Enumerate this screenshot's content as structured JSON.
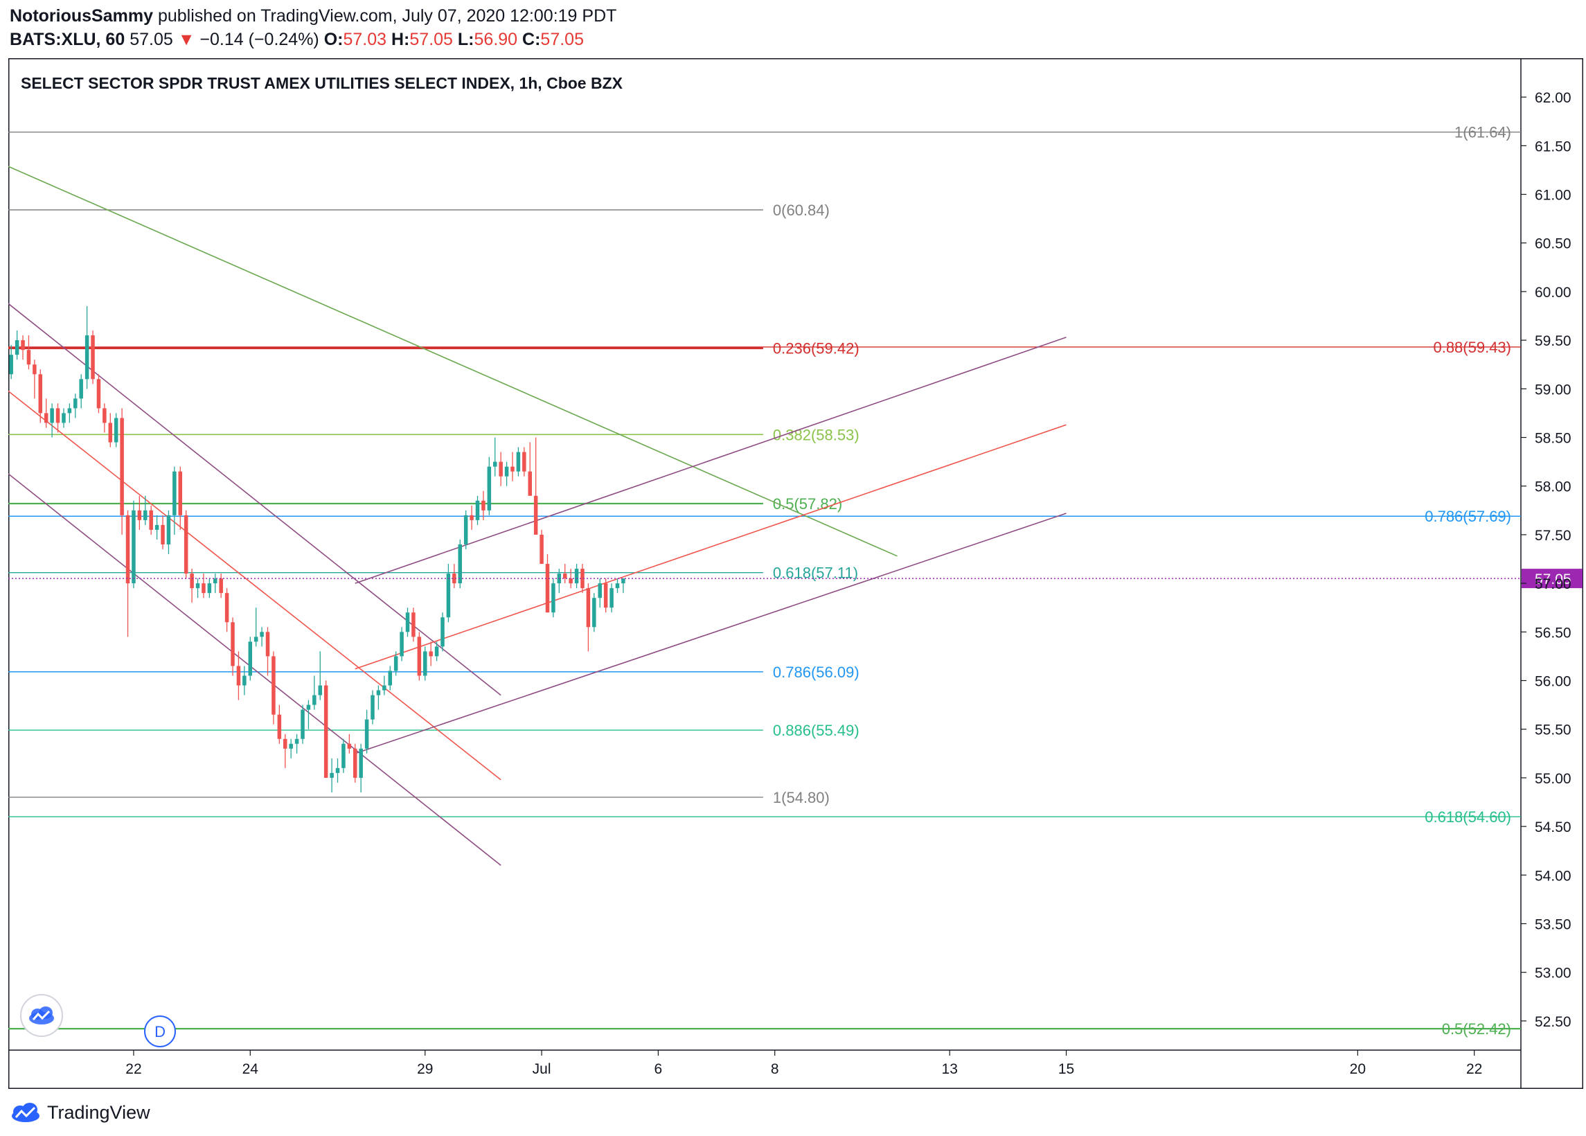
{
  "header": {
    "author": "NotoriousSammy",
    "published": "published on TradingView.com, July 07, 2020 12:00:19 PDT",
    "symbol": "BATS:XLU, 60",
    "last": "57.05",
    "arrow": "▼",
    "change": "−0.14 (−0.24%)",
    "o_label": "O:",
    "o_value": "57.03",
    "h_label": "H:",
    "h_value": "57.05",
    "l_label": "L:",
    "l_value": "56.90",
    "c_label": "C:",
    "c_value": "57.05"
  },
  "footer": {
    "brand": "TradingView"
  },
  "colors": {
    "up": "#26a69a",
    "down": "#ef5350",
    "axis": "#131722",
    "grid_text": "#131722",
    "price_tag": "#9c27b0"
  },
  "chart_data": {
    "type": "candlestick",
    "title": "SELECT SECTOR SPDR TRUST AMEX UTILITIES SELECT INDEX, 1h, Cboe BZX",
    "ylim": [
      52.2,
      62.4
    ],
    "y_ticks": [
      "62.00",
      "61.50",
      "61.00",
      "60.50",
      "60.00",
      "59.50",
      "59.00",
      "58.50",
      "58.00",
      "57.50",
      "57.00",
      "56.50",
      "56.00",
      "55.50",
      "55.00",
      "54.50",
      "54.00",
      "53.50",
      "53.00",
      "52.50"
    ],
    "x_ticks": [
      {
        "label": "22",
        "i": 21
      },
      {
        "label": "24",
        "i": 41
      },
      {
        "label": "29",
        "i": 71
      },
      {
        "label": "Jul",
        "i": 91
      },
      {
        "label": "6",
        "i": 111
      },
      {
        "label": "8",
        "i": 131
      },
      {
        "label": "13",
        "i": 161
      },
      {
        "label": "15",
        "i": 181
      },
      {
        "label": "20",
        "i": 231
      },
      {
        "label": "22",
        "i": 251
      }
    ],
    "x_range": [
      -0.5,
      259
    ],
    "last_price": {
      "value": 57.05,
      "label": "57.05"
    },
    "candles": [
      [
        59.15,
        59.45,
        59.1,
        59.35
      ],
      [
        59.35,
        59.6,
        59.3,
        59.5
      ],
      [
        59.5,
        59.55,
        59.3,
        59.4
      ],
      [
        59.4,
        59.55,
        59.2,
        59.25
      ],
      [
        59.25,
        59.3,
        58.9,
        59.15
      ],
      [
        59.15,
        59.2,
        58.65,
        58.75
      ],
      [
        58.75,
        58.9,
        58.6,
        58.65
      ],
      [
        58.65,
        58.85,
        58.5,
        58.8
      ],
      [
        58.8,
        58.85,
        58.55,
        58.65
      ],
      [
        58.65,
        58.8,
        58.6,
        58.75
      ],
      [
        58.75,
        58.85,
        58.65,
        58.8
      ],
      [
        58.8,
        58.95,
        58.7,
        58.9
      ],
      [
        58.9,
        59.15,
        58.8,
        59.1
      ],
      [
        59.1,
        59.85,
        59.0,
        59.55
      ],
      [
        59.55,
        59.6,
        59.05,
        59.1
      ],
      [
        59.1,
        59.15,
        58.75,
        58.8
      ],
      [
        58.8,
        58.85,
        58.55,
        58.65
      ],
      [
        58.65,
        58.75,
        58.4,
        58.45
      ],
      [
        58.45,
        58.75,
        58.4,
        58.7
      ],
      [
        58.7,
        58.8,
        57.5,
        57.7
      ],
      [
        57.7,
        57.75,
        56.45,
        57.0
      ],
      [
        57.0,
        57.85,
        56.95,
        57.75
      ],
      [
        57.75,
        57.9,
        57.55,
        57.65
      ],
      [
        57.65,
        57.9,
        57.6,
        57.75
      ],
      [
        57.75,
        57.8,
        57.5,
        57.55
      ],
      [
        57.55,
        57.7,
        57.45,
        57.6
      ],
      [
        57.6,
        57.7,
        57.35,
        57.4
      ],
      [
        57.4,
        57.75,
        57.3,
        57.7
      ],
      [
        57.7,
        58.2,
        57.5,
        58.15
      ],
      [
        58.15,
        58.2,
        57.55,
        57.7
      ],
      [
        57.7,
        57.75,
        57.05,
        57.1
      ],
      [
        57.1,
        57.15,
        56.8,
        56.95
      ],
      [
        56.95,
        57.05,
        56.85,
        57.0
      ],
      [
        57.0,
        57.1,
        56.85,
        56.9
      ],
      [
        56.9,
        57.05,
        56.85,
        57.0
      ],
      [
        57.0,
        57.1,
        56.9,
        57.05
      ],
      [
        57.05,
        57.1,
        56.85,
        56.9
      ],
      [
        56.9,
        56.95,
        56.5,
        56.6
      ],
      [
        56.6,
        56.65,
        56.05,
        56.15
      ],
      [
        56.15,
        56.3,
        55.8,
        55.95
      ],
      [
        55.95,
        56.15,
        55.85,
        56.05
      ],
      [
        56.05,
        56.45,
        56.0,
        56.4
      ],
      [
        56.4,
        56.75,
        56.35,
        56.45
      ],
      [
        56.45,
        56.55,
        56.35,
        56.5
      ],
      [
        56.5,
        56.55,
        56.05,
        56.25
      ],
      [
        56.25,
        56.3,
        55.55,
        55.65
      ],
      [
        55.65,
        55.75,
        55.35,
        55.4
      ],
      [
        55.4,
        55.45,
        55.1,
        55.3
      ],
      [
        55.3,
        55.4,
        55.2,
        55.35
      ],
      [
        55.35,
        55.45,
        55.25,
        55.4
      ],
      [
        55.4,
        55.75,
        55.35,
        55.7
      ],
      [
        55.7,
        55.8,
        55.5,
        55.75
      ],
      [
        55.75,
        56.05,
        55.7,
        55.85
      ],
      [
        55.85,
        56.3,
        55.8,
        55.95
      ],
      [
        55.95,
        56.0,
        55.0,
        55.0
      ],
      [
        55.0,
        55.2,
        54.85,
        55.05
      ],
      [
        55.05,
        55.2,
        54.95,
        55.1
      ],
      [
        55.1,
        55.4,
        55.05,
        55.35
      ],
      [
        55.35,
        55.45,
        55.25,
        55.3
      ],
      [
        55.3,
        55.35,
        54.95,
        55.0
      ],
      [
        55.0,
        55.35,
        54.85,
        55.3
      ],
      [
        55.3,
        55.7,
        55.25,
        55.6
      ],
      [
        55.6,
        55.9,
        55.55,
        55.85
      ],
      [
        55.85,
        55.95,
        55.7,
        55.9
      ],
      [
        55.9,
        56.05,
        55.85,
        55.95
      ],
      [
        55.95,
        56.15,
        55.9,
        56.1
      ],
      [
        56.1,
        56.3,
        56.05,
        56.25
      ],
      [
        56.25,
        56.55,
        56.2,
        56.5
      ],
      [
        56.5,
        56.75,
        56.45,
        56.7
      ],
      [
        56.7,
        56.75,
        56.4,
        56.45
      ],
      [
        56.45,
        56.5,
        56.0,
        56.05
      ],
      [
        56.05,
        56.35,
        56.0,
        56.3
      ],
      [
        56.3,
        56.4,
        56.15,
        56.25
      ],
      [
        56.25,
        56.4,
        56.2,
        56.35
      ],
      [
        56.35,
        56.7,
        56.3,
        56.65
      ],
      [
        56.65,
        57.2,
        56.6,
        57.1
      ],
      [
        57.1,
        57.2,
        56.95,
        57.0
      ],
      [
        57.0,
        57.45,
        56.95,
        57.4
      ],
      [
        57.4,
        57.75,
        57.35,
        57.7
      ],
      [
        57.7,
        57.8,
        57.55,
        57.65
      ],
      [
        57.65,
        57.9,
        57.6,
        57.85
      ],
      [
        57.85,
        57.95,
        57.65,
        57.75
      ],
      [
        57.75,
        58.3,
        57.7,
        58.2
      ],
      [
        58.2,
        58.5,
        58.1,
        58.25
      ],
      [
        58.25,
        58.35,
        58.0,
        58.1
      ],
      [
        58.1,
        58.25,
        58.0,
        58.2
      ],
      [
        58.2,
        58.35,
        58.05,
        58.15
      ],
      [
        58.15,
        58.4,
        58.1,
        58.35
      ],
      [
        58.35,
        58.4,
        58.1,
        58.15
      ],
      [
        58.15,
        58.45,
        57.9,
        57.9
      ],
      [
        57.9,
        58.5,
        57.5,
        57.5
      ],
      [
        57.5,
        57.55,
        57.2,
        57.2
      ],
      [
        57.2,
        57.3,
        56.7,
        56.7
      ],
      [
        56.7,
        57.05,
        56.65,
        57.0
      ],
      [
        57.0,
        57.15,
        56.9,
        57.1
      ],
      [
        57.1,
        57.2,
        57.0,
        57.05
      ],
      [
        57.05,
        57.15,
        56.95,
        57.0
      ],
      [
        57.0,
        57.2,
        56.95,
        57.15
      ],
      [
        57.15,
        57.2,
        56.9,
        56.95
      ],
      [
        56.95,
        57.0,
        56.3,
        56.55
      ],
      [
        56.55,
        56.9,
        56.5,
        56.85
      ],
      [
        56.85,
        57.05,
        56.75,
        57.0
      ],
      [
        57.0,
        57.05,
        56.7,
        56.75
      ],
      [
        56.75,
        57.0,
        56.7,
        56.95
      ],
      [
        56.95,
        57.05,
        56.9,
        57.0
      ],
      [
        57.0,
        57.05,
        56.9,
        57.05
      ]
    ],
    "fib_levels": [
      {
        "label": "1(61.64)",
        "value": 61.64,
        "color": "#808080",
        "width": 1.4,
        "x_end": "right",
        "label_pos": "right"
      },
      {
        "label": "0(60.84)",
        "value": 60.84,
        "color": "#808080",
        "width": 1.4,
        "x_end": 129,
        "label_pos": "mid"
      },
      {
        "label": "0.236(59.42)",
        "value": 59.42,
        "color": "#d32f2f",
        "width": 3.5,
        "x_end": 129,
        "label_pos": "mid"
      },
      {
        "label": "0.88(59.43)",
        "value": 59.43,
        "color": "#d32f2f",
        "width": 1.4,
        "x_end": "right",
        "label_pos": "right"
      },
      {
        "label": "0.382(58.53)",
        "value": 58.53,
        "color": "#8bc34a",
        "width": 1.6,
        "x_end": 129,
        "label_pos": "mid"
      },
      {
        "label": "0.5(57.82)",
        "value": 57.82,
        "color": "#4caf50",
        "width": 2.2,
        "x_end": 129,
        "label_pos": "mid"
      },
      {
        "label": "0.786(57.69)",
        "value": 57.69,
        "color": "#2196f3",
        "width": 1.4,
        "x_end": "right",
        "label_pos": "right"
      },
      {
        "label": "0.618(57.11)",
        "value": 57.11,
        "color": "#26a69a",
        "width": 1.4,
        "x_end": 129,
        "label_pos": "mid"
      },
      {
        "label": "0.786(56.09)",
        "value": 56.09,
        "color": "#2196f3",
        "width": 1.4,
        "x_end": 129,
        "label_pos": "mid"
      },
      {
        "label": "0.886(55.49)",
        "value": 55.49,
        "color": "#26bf8a",
        "width": 1.4,
        "x_end": 129,
        "label_pos": "mid"
      },
      {
        "label": "1(54.80)",
        "value": 54.8,
        "color": "#808080",
        "width": 1.4,
        "x_end": 129,
        "label_pos": "mid"
      },
      {
        "label": "0.618(54.60)",
        "value": 54.6,
        "color": "#26bf8a",
        "width": 1.4,
        "x_end": "right",
        "label_pos": "right"
      },
      {
        "label": "0.5(52.42)",
        "value": 52.42,
        "color": "#4caf50",
        "width": 2.2,
        "x_end": "right",
        "label_pos": "right"
      }
    ],
    "trendlines": [
      {
        "name": "green-downtrend",
        "color": "#6aa84f",
        "width": 1.6,
        "x1": -1,
        "y1": 61.3,
        "x2": 152,
        "y2": 57.28
      },
      {
        "name": "down-channel-upper",
        "color": "#8e4d82",
        "width": 1.6,
        "x1": -1,
        "y1": 59.9,
        "x2": 84,
        "y2": 55.85
      },
      {
        "name": "down-channel-mid",
        "color": "#f0554c",
        "width": 1.6,
        "x1": -1,
        "y1": 59.0,
        "x2": 84,
        "y2": 54.98
      },
      {
        "name": "down-channel-lower",
        "color": "#8e4d82",
        "width": 1.6,
        "x1": -1,
        "y1": 58.15,
        "x2": 84,
        "y2": 54.1
      },
      {
        "name": "up-channel-upper",
        "color": "#8e4d82",
        "width": 1.6,
        "x1": 59,
        "y1": 57.0,
        "x2": 181,
        "y2": 59.53
      },
      {
        "name": "up-channel-mid",
        "color": "#f0554c",
        "width": 1.6,
        "x1": 59,
        "y1": 56.12,
        "x2": 181,
        "y2": 58.63
      },
      {
        "name": "up-channel-lower",
        "color": "#8e4d82",
        "width": 1.6,
        "x1": 59,
        "y1": 55.25,
        "x2": 181,
        "y2": 57.72
      }
    ]
  }
}
